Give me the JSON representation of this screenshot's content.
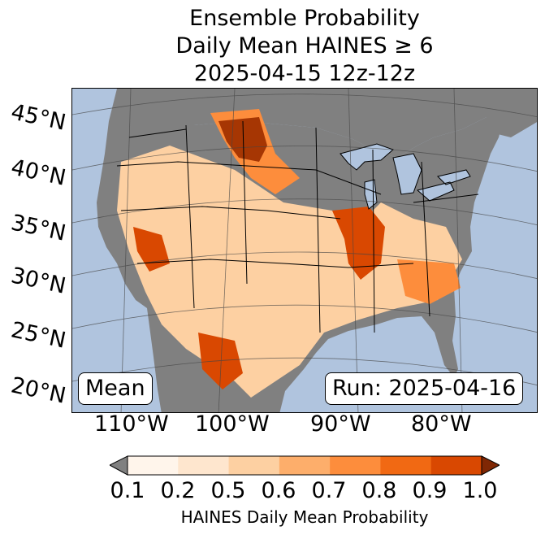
{
  "title": {
    "line1": "Ensemble Probability",
    "line2": "Daily Mean HAINES ≥ 6",
    "line3": "2025-04-15 12z-12z"
  },
  "map": {
    "lat_labels": [
      "45°N",
      "40°N",
      "35°N",
      "30°N",
      "25°N",
      "20°N"
    ],
    "lon_labels": [
      "110°W",
      "100°W",
      "90°W",
      "80°W"
    ],
    "stat_label": "Mean",
    "run_label": "Run: 2025-04-16",
    "colors": {
      "ocean": "#b0c4de",
      "below_threshold": "#808080",
      "lakes": "#b0c4de"
    }
  },
  "colorbar": {
    "ticks": [
      "0.1",
      "0.2",
      "0.5",
      "0.6",
      "0.7",
      "0.8",
      "0.9",
      "1.0"
    ],
    "colors": [
      "#fff5eb",
      "#fee6ce",
      "#fdd0a2",
      "#fdae6b",
      "#fd8d3c",
      "#f16913",
      "#d94801",
      "#a63603"
    ],
    "under_color": "#808080",
    "over_color": "#7f2704",
    "label": "HAINES Daily Mean Probability"
  }
}
